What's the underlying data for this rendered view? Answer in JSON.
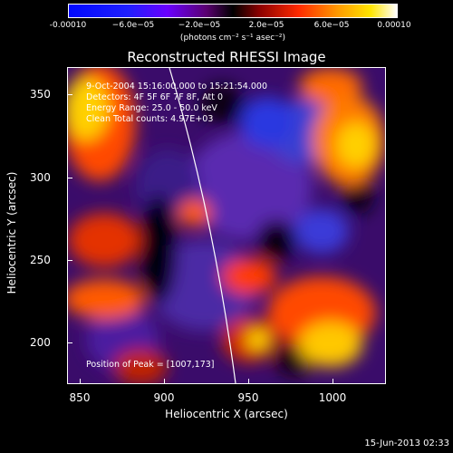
{
  "colorbar": {
    "ticks": [
      "-0.00010",
      "−6.0e−05",
      "−2.0e−05",
      "2.0e−05",
      "6.0e−05",
      "0.00010"
    ],
    "units": "(photons cm⁻² s⁻¹ asec⁻²)"
  },
  "title": "Reconstructed RHESSI Image",
  "info": {
    "time": "9-Oct-2004 15:16:00.000 to 15:21:54.000",
    "detectors": "Detectors: 4F 5F 6F 7F 8F, Att 0",
    "energy": "Energy Range: 25.0 - 50.0 keV",
    "clean": "Clean    Total counts: 4.97E+03",
    "peak": "Position of Peak = [1007,173]"
  },
  "axes": {
    "xlabel": "Heliocentric X (arcsec)",
    "ylabel": "Heliocentric Y (arcsec)",
    "xticks": [
      "850",
      "900",
      "950",
      "1000"
    ],
    "yticks": [
      "350",
      "300",
      "250",
      "200"
    ]
  },
  "footer": "15-Jun-2013 02:33"
}
